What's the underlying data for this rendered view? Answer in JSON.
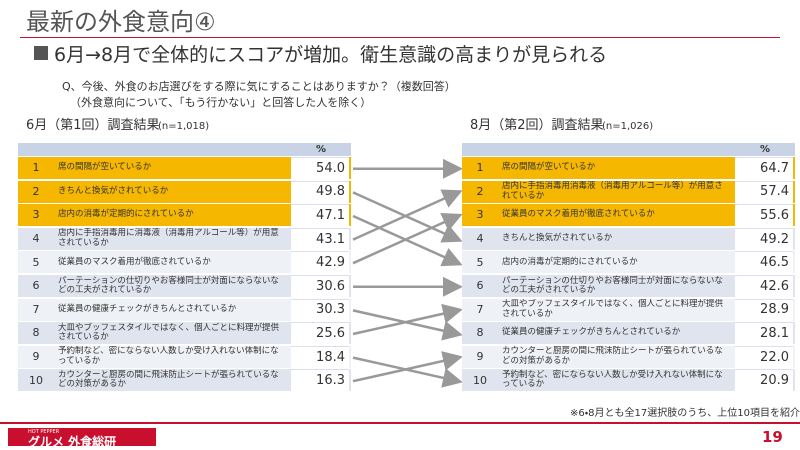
{
  "header": {
    "title": "最新の外食意向④",
    "subtitle": "6月→8月で全体的にスコアが増加。衛生意識の高まりが見られる",
    "question": [
      "Q、今後、外食のお店選びをする際に気にすることはありますか？（複数回答）",
      "（外食意向について、「もう行かない」と回答した人を除く）"
    ]
  },
  "tables": [
    {
      "title": "6月（第1回）調査結果",
      "n": "(n=1,018)",
      "unit": "%",
      "rows": [
        [
          "1",
          "席の間隔が空いているか",
          "54.0"
        ],
        [
          "2",
          "きちんと換気がされているか",
          "49.8"
        ],
        [
          "3",
          "店内の消毒が定期的にされているか",
          "47.1"
        ],
        [
          "4",
          "店内に手指消毒用に消毒液（消毒用アルコール等）が用意されているか",
          "43.1"
        ],
        [
          "5",
          "従業員のマスク着用が徹底されているか",
          "42.9"
        ],
        [
          "6",
          "パーテーションの仕切りやお客様同士が対面にならないなどの工夫がされているか",
          "30.6"
        ],
        [
          "7",
          "従業員の健康チェックがきちんとされているか",
          "30.3"
        ],
        [
          "8",
          "大皿やブッフェスタイルではなく、個人ごとに料理が提供されているか",
          "25.6"
        ],
        [
          "9",
          "予約制など、密にならない人数しか受け入れない体制になっているか",
          "18.4"
        ],
        [
          "10",
          "カウンターと厨房の間に飛沫防止シートが張られているなどの対策があるか",
          "16.3"
        ]
      ]
    },
    {
      "title": "8月（第2回）調査結果",
      "n": "(n=1,026)",
      "unit": "%",
      "rows": [
        [
          "1",
          "席の間隔が空いているか",
          "64.7"
        ],
        [
          "2",
          "店内に手指消毒用消毒液（消毒用アルコール等）が用意されているか",
          "57.4"
        ],
        [
          "3",
          "従業員のマスク着用が徹底されているか",
          "55.6"
        ],
        [
          "4",
          "きちんと換気がされているか",
          "49.2"
        ],
        [
          "5",
          "店内の消毒が定期的にされているか",
          "46.5"
        ],
        [
          "6",
          "パーテーションの仕切りやお客様同士が対面にならないなどの工夫がされているか",
          "42.6"
        ],
        [
          "7",
          "大皿やブッフェスタイルではなく、個人ごとに料理が提供されているか",
          "28.9"
        ],
        [
          "8",
          "従業員の健康チェックがきちんとされているか",
          "28.1"
        ],
        [
          "9",
          "カウンターと厨房の間に飛沫防止シートが張られているなどの対策があるか",
          "22.0"
        ],
        [
          "10",
          "予約制など、密にならない人数しか受け入れない体制になっているか",
          "20.9"
        ]
      ]
    }
  ],
  "footer": {
    "note": "※6・8月とも全17選択肢のうち、上位10項目を紹介",
    "brand_small": "HOT PEPPER",
    "brand": "グルメ 外食総研",
    "page": "19"
  }
}
